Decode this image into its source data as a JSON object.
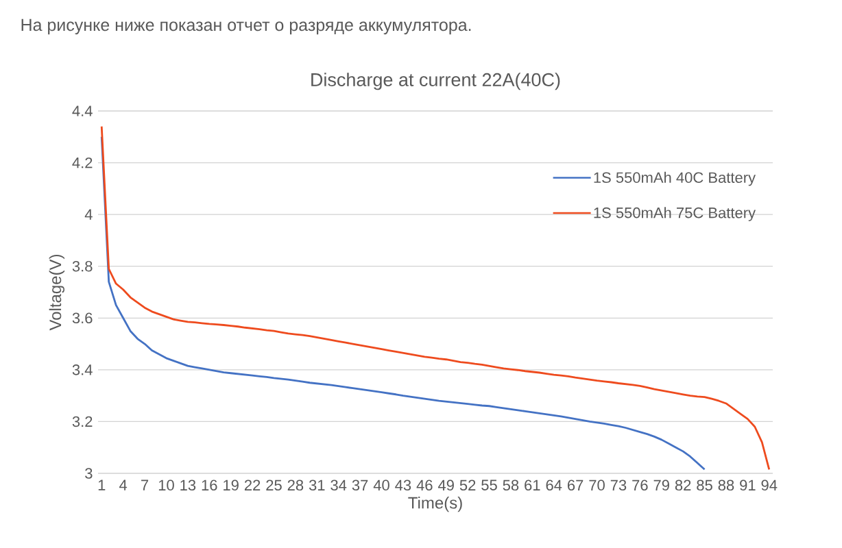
{
  "chart_data": {
    "type": "line",
    "title": "Discharge at current 22A(40C)",
    "xlabel": "Time(s)",
    "ylabel": "Voltage(V)",
    "annotations": [
      "На рисунке ниже показан отчет о разряде аккумулятора."
    ],
    "categories": [
      "1",
      null,
      null,
      "4",
      null,
      null,
      "7",
      null,
      null,
      "10",
      null,
      null,
      "13",
      null,
      null,
      "16",
      null,
      null,
      "19",
      null,
      null,
      "22",
      null,
      null,
      "25",
      null,
      null,
      "28",
      null,
      null,
      "31",
      null,
      null,
      "34",
      null,
      null,
      "37",
      null,
      null,
      "40",
      null,
      null,
      "43",
      null,
      null,
      "46",
      null,
      null,
      "49",
      null,
      null,
      "52",
      null,
      null,
      "55",
      null,
      null,
      "58",
      null,
      null,
      "61",
      null,
      null,
      "64",
      null,
      null,
      "67",
      null,
      null,
      "70",
      null,
      null,
      "73",
      null,
      null,
      "76",
      null,
      null,
      "79",
      null,
      null,
      "82",
      null,
      null,
      "85",
      null,
      null,
      "88",
      null,
      null,
      "91",
      null,
      null,
      "94"
    ],
    "ylim": [
      3,
      4.4
    ],
    "yticks": [
      3,
      3.2,
      3.4,
      3.6,
      3.8,
      4,
      4.2,
      4.4
    ],
    "grid": "y",
    "legend": "top right",
    "marker": "none",
    "line_style": "solid",
    "series": [
      {
        "name": "1S 550mAh 40C Battery",
        "color": "#4472c4",
        "values": [
          4.3,
          3.74,
          3.65,
          3.6,
          3.55,
          3.52,
          3.5,
          3.475,
          3.46,
          3.445,
          3.435,
          3.425,
          3.415,
          3.41,
          3.405,
          3.4,
          3.395,
          3.39,
          3.387,
          3.384,
          3.381,
          3.378,
          3.375,
          3.372,
          3.368,
          3.365,
          3.362,
          3.358,
          3.354,
          3.35,
          3.347,
          3.344,
          3.341,
          3.337,
          3.333,
          3.329,
          3.325,
          3.321,
          3.317,
          3.313,
          3.309,
          3.305,
          3.3,
          3.296,
          3.292,
          3.288,
          3.284,
          3.28,
          3.277,
          3.274,
          3.271,
          3.268,
          3.265,
          3.262,
          3.26,
          3.256,
          3.252,
          3.248,
          3.244,
          3.24,
          3.236,
          3.232,
          3.228,
          3.224,
          3.22,
          3.215,
          3.21,
          3.205,
          3.2,
          3.196,
          3.192,
          3.187,
          3.182,
          3.176,
          3.168,
          3.16,
          3.152,
          3.142,
          3.13,
          3.115,
          3.1,
          3.085,
          3.065,
          3.04,
          3.015,
          null,
          null,
          null,
          null,
          null,
          null,
          null,
          null,
          null
        ]
      },
      {
        "name": "1S 550mAh 75C Battery",
        "color": "#ee4b1e",
        "values": [
          4.34,
          3.79,
          3.733,
          3.71,
          3.68,
          3.66,
          3.64,
          3.625,
          3.615,
          3.605,
          3.595,
          3.59,
          3.585,
          3.583,
          3.58,
          3.577,
          3.575,
          3.573,
          3.57,
          3.567,
          3.563,
          3.56,
          3.557,
          3.553,
          3.55,
          3.545,
          3.54,
          3.537,
          3.534,
          3.53,
          3.525,
          3.52,
          3.515,
          3.51,
          3.505,
          3.5,
          3.495,
          3.49,
          3.485,
          3.48,
          3.475,
          3.47,
          3.465,
          3.46,
          3.455,
          3.45,
          3.447,
          3.443,
          3.44,
          3.435,
          3.43,
          3.427,
          3.423,
          3.42,
          3.415,
          3.41,
          3.405,
          3.402,
          3.399,
          3.395,
          3.392,
          3.389,
          3.385,
          3.381,
          3.378,
          3.375,
          3.37,
          3.366,
          3.362,
          3.358,
          3.355,
          3.352,
          3.348,
          3.345,
          3.342,
          3.338,
          3.332,
          3.325,
          3.32,
          3.315,
          3.31,
          3.305,
          3.3,
          3.297,
          3.295,
          3.288,
          3.28,
          3.27,
          3.25,
          3.23,
          3.21,
          3.18,
          3.12,
          3.015
        ]
      }
    ]
  }
}
